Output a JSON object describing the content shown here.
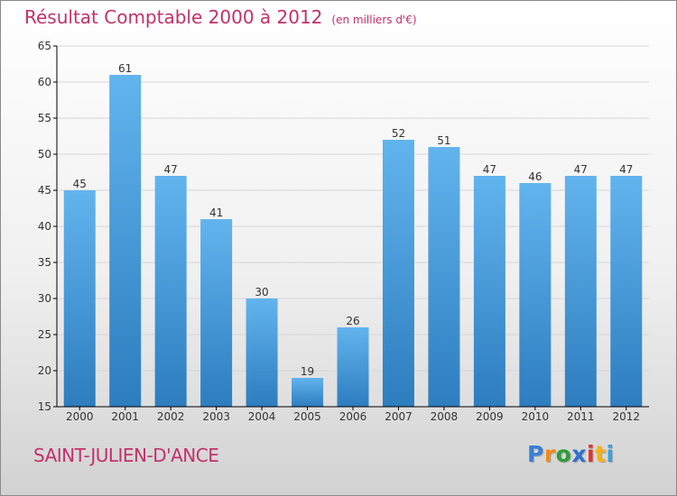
{
  "title": "Résultat Comptable 2000 à 2012",
  "unit_label": "(en milliers d'€)",
  "commune": "SAINT-JULIEN-D'ANCE",
  "logo": {
    "text": "Proxiti",
    "letters": [
      "P",
      "r",
      "o",
      "x",
      "i",
      "t",
      "i"
    ],
    "colors": [
      "#3a7fd6",
      "#f28a1a",
      "#2f9e3a",
      "#2f6fd0",
      "#e0332b",
      "#f2b21a",
      "#3aa0e0"
    ]
  },
  "colors": {
    "bar_top": "#62b4ee",
    "bar_bottom": "#2d7dbf",
    "grid": "#d6d6d6",
    "axis": "#000000",
    "text": "#333333",
    "title": "#c4306a"
  },
  "chart_data": {
    "type": "bar",
    "title": "Résultat Comptable 2000 à 2012",
    "subtitle": "(en milliers d'€)",
    "xlabel": "",
    "ylabel": "",
    "categories": [
      "2000",
      "2001",
      "2002",
      "2003",
      "2004",
      "2005",
      "2006",
      "2007",
      "2008",
      "2009",
      "2010",
      "2011",
      "2012"
    ],
    "values": [
      45,
      61,
      47,
      41,
      30,
      19,
      26,
      52,
      51,
      47,
      46,
      47,
      47
    ],
    "ylim": [
      15,
      65
    ],
    "yticks": [
      15,
      20,
      25,
      30,
      35,
      40,
      45,
      50,
      55,
      60,
      65
    ],
    "grid": true,
    "data_labels": true
  }
}
